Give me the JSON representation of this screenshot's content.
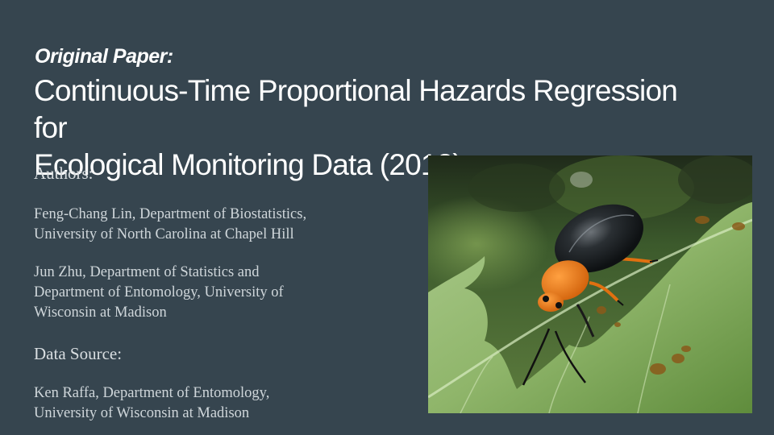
{
  "slide": {
    "subtitle": "Original Paper:",
    "title_lines": [
      "Continuous-Time Proportional Hazards Regression for",
      "Ecological Monitoring Data (2012)"
    ],
    "authors_heading": "Authors:",
    "authors": [
      {
        "lines": [
          "Feng-Chang Lin, Department of Biostatistics,",
          "University of North Carolina at Chapel Hill"
        ]
      },
      {
        "lines": [
          "Jun Zhu, Department of Statistics and",
          "Department of Entomology, University of",
          "Wisconsin at Madison"
        ]
      }
    ],
    "data_source_heading": "Data Source:",
    "data_source": {
      "lines": [
        "Ken Raffa, Department of Entomology,",
        "University of Wisconsin at Madison"
      ]
    }
  },
  "colors": {
    "background": "#36454f",
    "title": "#ffffff",
    "body_text": "#cfd6da"
  },
  "photo": {
    "icon": "beetle-on-leaf-photo"
  }
}
